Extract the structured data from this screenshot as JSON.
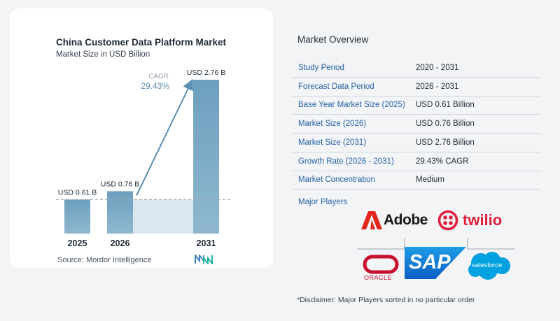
{
  "chart_data": {
    "type": "bar",
    "title": "China Customer Data Platform Market",
    "subtitle": "Market Size in USD Billion",
    "categories": [
      "2025",
      "2026",
      "2031"
    ],
    "values": [
      0.61,
      0.76,
      2.76
    ],
    "data_labels": [
      "USD 0.61 B",
      "USD 0.76 B",
      "USD 2.76 B"
    ],
    "ylim": [
      0,
      2.76
    ],
    "grid": false,
    "annotation": {
      "label": "CAGR",
      "value": "29.43%"
    },
    "colors": {
      "bar_top": "#6c9fbe",
      "bar_bottom": "#8fb8cf",
      "arrow": "#5a8fb3",
      "shade": "#dbe6ee",
      "cagr_text": "#5a8fb3"
    }
  },
  "source": "Source:  Mordor Intelligence",
  "overview": {
    "title": "Market Overview",
    "rows": [
      {
        "label": "Study Period",
        "value": "2020 - 2031"
      },
      {
        "label": "Forecast Data Period",
        "value": "2026 - 2031"
      },
      {
        "label": "Base Year Market Size (2025)",
        "value": "USD 0.61 Billion"
      },
      {
        "label": "Market Size (2026)",
        "value": "USD 0.76 Billion"
      },
      {
        "label": "Market Size (2031)",
        "value": "USD 2.76 Billion"
      },
      {
        "label": "Growth Rate (2026 - 2031)",
        "value": "29.43% CAGR"
      },
      {
        "label": "Market Concentration",
        "value": "Medium"
      }
    ],
    "players_label": "Major Players",
    "players": {
      "adobe": "Adobe",
      "twilio": "twilio",
      "oracle": "ORACLE",
      "sap": "SAP",
      "salesforce": "salesforce"
    },
    "disclaimer": "*Disclaimer: Major Players sorted in no particular order"
  }
}
